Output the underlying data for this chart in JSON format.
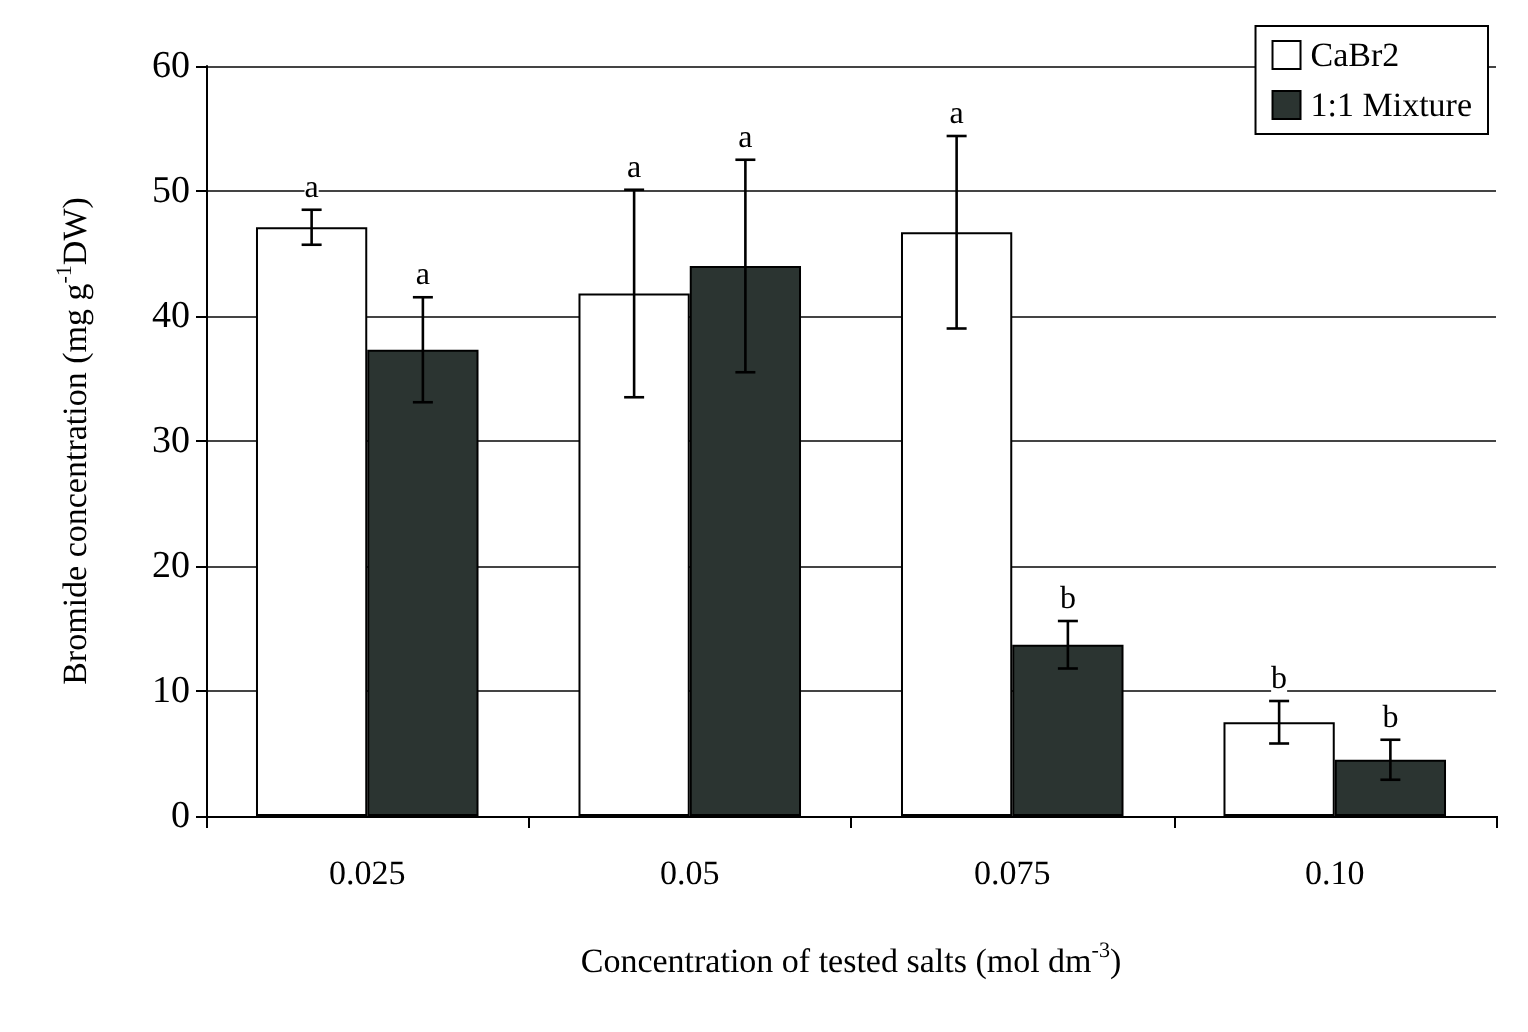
{
  "chart_data": {
    "type": "bar",
    "xlabel": "Concentration of tested salts (mol dm$^{-3}$)",
    "ylabel": "Bromide concentration (mg g$^{-1}$DW)",
    "categories": [
      "0.025",
      "0.05",
      "0.075",
      "0.10"
    ],
    "series": [
      {
        "name": "CaBr2",
        "color": "#ffffff",
        "values": [
          47.1,
          41.8,
          46.7,
          7.5
        ],
        "errors": [
          1.4,
          8.3,
          7.7,
          1.7
        ]
      },
      {
        "name": "1:1 Mixture",
        "color": "#2b3431",
        "values": [
          37.3,
          44.0,
          13.7,
          4.5
        ],
        "errors": [
          4.2,
          8.5,
          1.9,
          1.6
        ]
      }
    ],
    "annotations": [
      "a",
      "a",
      "a",
      "a",
      "a",
      "b",
      "b",
      "b"
    ],
    "ylim": [
      0,
      60
    ],
    "yticks": [
      0,
      10,
      20,
      30,
      40,
      50,
      60
    ],
    "grid": "y",
    "legend": "top right"
  }
}
